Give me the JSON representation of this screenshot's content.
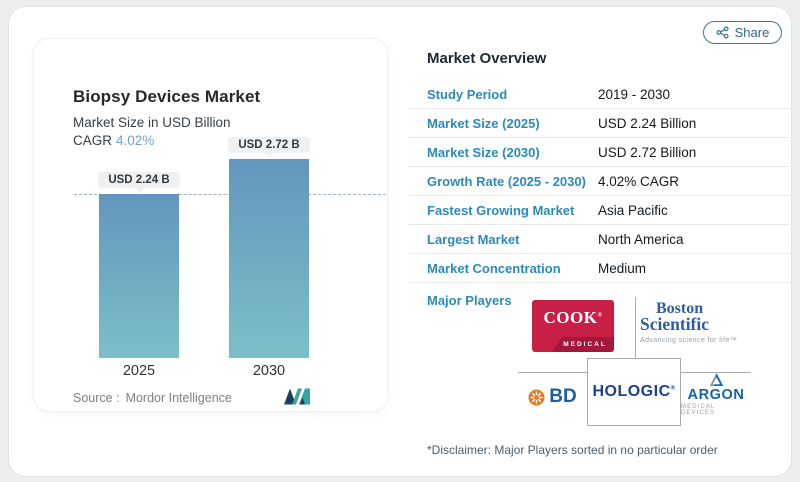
{
  "share": {
    "label": "Share"
  },
  "chart_card": {
    "title": "Biopsy Devices Market",
    "subtitle": "Market Size in USD Billion",
    "cagr_label": "CAGR",
    "cagr_value": "4.02%",
    "source_label": "Source :",
    "source_value": "Mordor Intelligence"
  },
  "chart_data": {
    "type": "bar",
    "title": "Biopsy Devices Market",
    "ylabel": "Market Size in USD Billion",
    "categories": [
      "2025",
      "2030"
    ],
    "values": [
      2.24,
      2.72
    ],
    "bar_labels": [
      "USD 2.24 B",
      "USD 2.72 B"
    ],
    "cagr": "4.02%",
    "reference_line": 2.24,
    "ylim": [
      0,
      2.9
    ],
    "grid": "off",
    "bar_color_top": "#6496bd",
    "bar_color_bottom": "#7bbfc7",
    "source": "Mordor Intelligence"
  },
  "overview": {
    "title": "Market Overview",
    "rows": [
      {
        "label": "Study Period",
        "value": "2019 - 2030"
      },
      {
        "label": "Market Size (2025)",
        "value": "USD 2.24 Billion"
      },
      {
        "label": "Market Size (2030)",
        "value": "USD 2.72 Billion"
      },
      {
        "label": "Growth Rate (2025 - 2030)",
        "value": "4.02% CAGR"
      },
      {
        "label": "Fastest Growing Market",
        "value": "Asia Pacific"
      },
      {
        "label": "Largest Market",
        "value": "North America"
      },
      {
        "label": "Market Concentration",
        "value": "Medium"
      }
    ],
    "major_players_label": "Major Players",
    "disclaimer": "*Disclaimer: Major Players sorted in no particular order"
  },
  "logos": {
    "cook": {
      "name": "COOK",
      "reg": "®",
      "sub": "MEDICAL"
    },
    "boston": {
      "line1": "Boston",
      "line2": "Scientific",
      "tagline": "Advancing science for life™"
    },
    "bd": {
      "name": "BD"
    },
    "hologic": {
      "name": "HOLOGIC",
      "reg": "®"
    },
    "argon": {
      "name": "ARGON",
      "sub": "MEDICAL DEVICES"
    }
  },
  "colors": {
    "accent_blue": "#2b8abc",
    "cagr_blue": "#6fa3cf",
    "bar_top": "#6496bd",
    "bar_bottom": "#7bbfc7",
    "cook_red": "#c71f46",
    "boston_blue": "#2d5d9e",
    "bd_orange": "#e87722",
    "hologic_blue": "#1c3f94",
    "argon_blue": "#1464a5"
  }
}
